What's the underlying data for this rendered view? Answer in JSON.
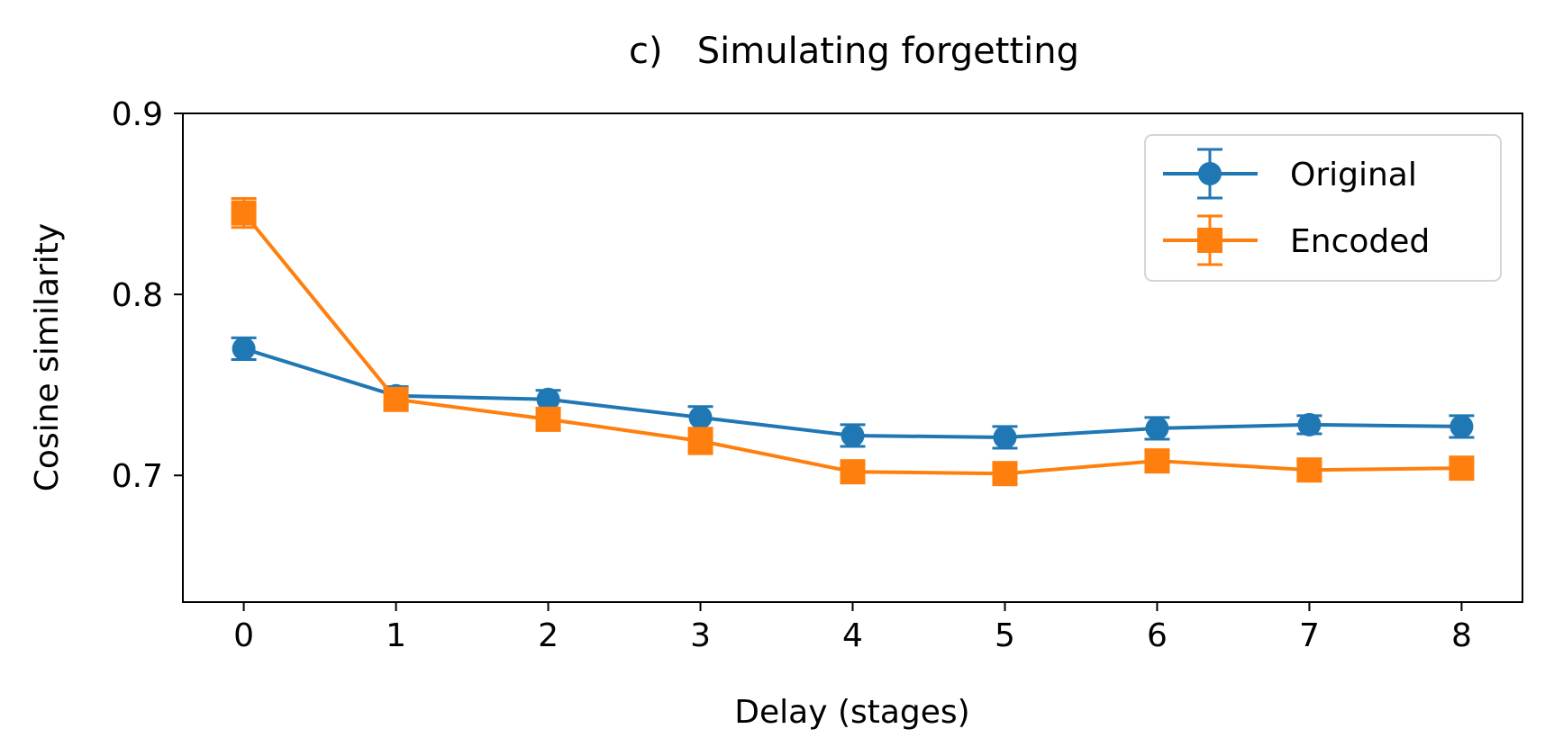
{
  "chart_data": {
    "type": "line",
    "title": "c)   Simulating forgetting",
    "xlabel": "Delay (stages)",
    "ylabel": "Cosine similarity",
    "x": [
      0,
      1,
      2,
      3,
      4,
      5,
      6,
      7,
      8
    ],
    "xlim": [
      -0.4,
      8.4
    ],
    "ylim": [
      0.63,
      0.9
    ],
    "xticks": [
      "0",
      "1",
      "2",
      "3",
      "4",
      "5",
      "6",
      "7",
      "8"
    ],
    "yticks": [
      "0.7",
      "0.8",
      "0.9"
    ],
    "grid": false,
    "legend_position": "top-right",
    "series": [
      {
        "name": "Original",
        "color": "#1f77b4",
        "marker": "circle",
        "values": [
          0.77,
          0.744,
          0.742,
          0.732,
          0.722,
          0.721,
          0.726,
          0.728,
          0.727
        ],
        "errors": [
          0.006,
          0.005,
          0.005,
          0.006,
          0.006,
          0.006,
          0.006,
          0.005,
          0.006
        ]
      },
      {
        "name": "Encoded",
        "color": "#ff7f0e",
        "marker": "square",
        "values": [
          0.845,
          0.742,
          0.731,
          0.719,
          0.702,
          0.701,
          0.708,
          0.703,
          0.704
        ],
        "errors": [
          0.008,
          0.006,
          0.006,
          0.007,
          0.006,
          0.006,
          0.006,
          0.006,
          0.006
        ]
      }
    ]
  }
}
